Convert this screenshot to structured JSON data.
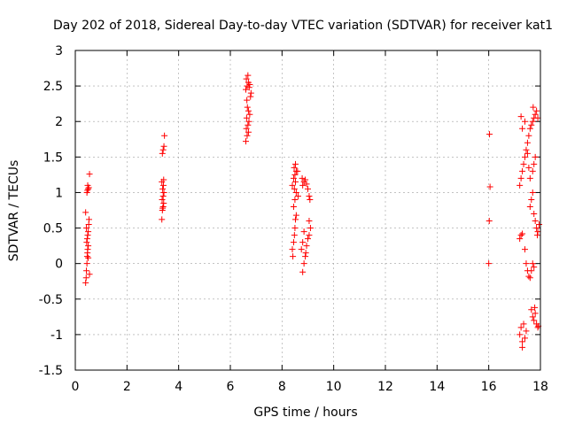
{
  "chart_data": {
    "type": "scatter",
    "title": "Day 202 of 2018, Sidereal Day-to-day VTEC variation (SDTVAR) for receiver kat1",
    "xlabel": "GPS time / hours",
    "ylabel": "SDTVAR / TECUs",
    "xlim": [
      0,
      18
    ],
    "ylim": [
      -1.5,
      3
    ],
    "grid": true,
    "marker": "+",
    "color": "#ff0000",
    "x_ticks": [
      0,
      2,
      4,
      6,
      8,
      10,
      12,
      14,
      16,
      18
    ],
    "x_tick_labels": [
      "0",
      "2",
      "4",
      "6",
      "8",
      "10",
      "12",
      "14",
      "16",
      "18"
    ],
    "y_ticks": [
      -1.5,
      -1,
      -0.5,
      0,
      0.5,
      1,
      1.5,
      2,
      2.5,
      3
    ],
    "y_tick_labels": [
      "-1.5",
      "-1",
      "-0.5",
      "0",
      "0.5",
      "1",
      "1.5",
      "2",
      "2.5",
      "3"
    ],
    "points": [
      [
        0.4,
        -0.27
      ],
      [
        0.42,
        -0.2
      ],
      [
        0.43,
        -0.1
      ],
      [
        0.45,
        0.0
      ],
      [
        0.46,
        0.1
      ],
      [
        0.47,
        0.15
      ],
      [
        0.48,
        0.2
      ],
      [
        0.5,
        0.25
      ],
      [
        0.44,
        0.3
      ],
      [
        0.46,
        0.35
      ],
      [
        0.48,
        0.4
      ],
      [
        0.5,
        0.45
      ],
      [
        0.43,
        0.5
      ],
      [
        0.52,
        0.55
      ],
      [
        0.53,
        0.62
      ],
      [
        0.4,
        0.72
      ],
      [
        0.45,
        1.0
      ],
      [
        0.47,
        1.03
      ],
      [
        0.5,
        1.05
      ],
      [
        0.52,
        1.07
      ],
      [
        0.48,
        1.1
      ],
      [
        0.55,
        1.26
      ],
      [
        0.55,
        -0.15
      ],
      [
        0.5,
        0.08
      ],
      [
        3.35,
        0.62
      ],
      [
        3.37,
        0.75
      ],
      [
        3.38,
        0.78
      ],
      [
        3.4,
        0.8
      ],
      [
        3.42,
        0.85
      ],
      [
        3.36,
        0.9
      ],
      [
        3.4,
        0.95
      ],
      [
        3.43,
        1.0
      ],
      [
        3.38,
        1.05
      ],
      [
        3.41,
        1.1
      ],
      [
        3.35,
        1.15
      ],
      [
        3.42,
        1.18
      ],
      [
        3.37,
        1.55
      ],
      [
        3.4,
        1.6
      ],
      [
        3.43,
        1.65
      ],
      [
        3.45,
        1.8
      ],
      [
        6.6,
        1.72
      ],
      [
        6.65,
        1.8
      ],
      [
        6.7,
        1.85
      ],
      [
        6.62,
        1.9
      ],
      [
        6.68,
        1.95
      ],
      [
        6.72,
        2.0
      ],
      [
        6.63,
        2.05
      ],
      [
        6.75,
        2.1
      ],
      [
        6.7,
        2.15
      ],
      [
        6.66,
        2.2
      ],
      [
        6.78,
        2.35
      ],
      [
        6.6,
        2.45
      ],
      [
        6.65,
        2.5
      ],
      [
        6.7,
        2.55
      ],
      [
        6.75,
        2.52
      ],
      [
        6.62,
        2.6
      ],
      [
        6.68,
        2.65
      ],
      [
        6.73,
        2.48
      ],
      [
        6.8,
        2.4
      ],
      [
        6.64,
        2.3
      ],
      [
        8.4,
        0.2
      ],
      [
        8.42,
        0.1
      ],
      [
        8.45,
        0.3
      ],
      [
        8.48,
        0.4
      ],
      [
        8.5,
        0.5
      ],
      [
        8.52,
        0.62
      ],
      [
        8.55,
        0.68
      ],
      [
        8.45,
        0.8
      ],
      [
        8.5,
        0.9
      ],
      [
        8.55,
        1.0
      ],
      [
        8.48,
        1.05
      ],
      [
        8.4,
        1.1
      ],
      [
        8.52,
        1.15
      ],
      [
        8.45,
        1.2
      ],
      [
        8.5,
        1.25
      ],
      [
        8.55,
        1.3
      ],
      [
        8.47,
        1.35
      ],
      [
        8.52,
        1.4
      ],
      [
        8.6,
        1.3
      ],
      [
        8.62,
        0.95
      ],
      [
        8.8,
        -0.12
      ],
      [
        8.85,
        0.0
      ],
      [
        8.9,
        0.1
      ],
      [
        8.75,
        0.2
      ],
      [
        8.8,
        0.3
      ],
      [
        8.95,
        0.25
      ],
      [
        9.0,
        0.35
      ],
      [
        9.05,
        0.4
      ],
      [
        8.85,
        0.45
      ],
      [
        9.1,
        0.5
      ],
      [
        9.05,
        0.6
      ],
      [
        8.8,
        1.1
      ],
      [
        8.85,
        1.15
      ],
      [
        8.9,
        1.18
      ],
      [
        8.95,
        1.12
      ],
      [
        9.0,
        1.05
      ],
      [
        9.05,
        0.95
      ],
      [
        9.08,
        0.9
      ],
      [
        8.78,
        1.2
      ],
      [
        8.92,
        0.15
      ],
      [
        16.0,
        0.0
      ],
      [
        16.02,
        0.6
      ],
      [
        16.05,
        1.08
      ],
      [
        16.03,
        1.82
      ],
      [
        17.2,
        -1.0
      ],
      [
        17.25,
        -0.9
      ],
      [
        17.3,
        -1.1
      ],
      [
        17.35,
        -0.85
      ],
      [
        17.4,
        -1.05
      ],
      [
        17.45,
        -0.95
      ],
      [
        17.3,
        -1.18
      ],
      [
        17.2,
        0.35
      ],
      [
        17.25,
        0.4
      ],
      [
        17.3,
        0.42
      ],
      [
        17.4,
        0.2
      ],
      [
        17.45,
        0.0
      ],
      [
        17.5,
        -0.1
      ],
      [
        17.55,
        -0.18
      ],
      [
        17.2,
        1.1
      ],
      [
        17.25,
        1.2
      ],
      [
        17.3,
        1.3
      ],
      [
        17.35,
        1.4
      ],
      [
        17.4,
        1.5
      ],
      [
        17.45,
        1.6
      ],
      [
        17.5,
        1.7
      ],
      [
        17.55,
        1.8
      ],
      [
        17.3,
        1.9
      ],
      [
        17.4,
        2.0
      ],
      [
        17.25,
        2.07
      ],
      [
        17.5,
        1.55
      ],
      [
        17.55,
        1.35
      ],
      [
        17.6,
        1.2
      ],
      [
        17.6,
        -0.2
      ],
      [
        17.65,
        -0.1
      ],
      [
        17.7,
        0.0
      ],
      [
        17.75,
        -0.05
      ],
      [
        17.6,
        0.8
      ],
      [
        17.65,
        0.9
      ],
      [
        17.7,
        1.0
      ],
      [
        17.75,
        0.7
      ],
      [
        17.8,
        0.6
      ],
      [
        17.85,
        0.5
      ],
      [
        17.6,
        1.9
      ],
      [
        17.65,
        1.95
      ],
      [
        17.7,
        2.0
      ],
      [
        17.75,
        2.05
      ],
      [
        17.8,
        2.1
      ],
      [
        17.85,
        2.15
      ],
      [
        17.9,
        2.05
      ],
      [
        17.72,
        2.2
      ],
      [
        17.7,
        1.3
      ],
      [
        17.75,
        1.4
      ],
      [
        17.8,
        1.5
      ],
      [
        17.65,
        -0.65
      ],
      [
        17.7,
        -0.75
      ],
      [
        17.75,
        -0.8
      ],
      [
        17.8,
        -0.7
      ],
      [
        17.85,
        -0.85
      ],
      [
        17.9,
        -0.9
      ],
      [
        17.88,
        0.4
      ],
      [
        17.9,
        0.45
      ],
      [
        17.95,
        0.55
      ],
      [
        17.92,
        -0.88
      ],
      [
        17.78,
        -0.62
      ]
    ]
  }
}
